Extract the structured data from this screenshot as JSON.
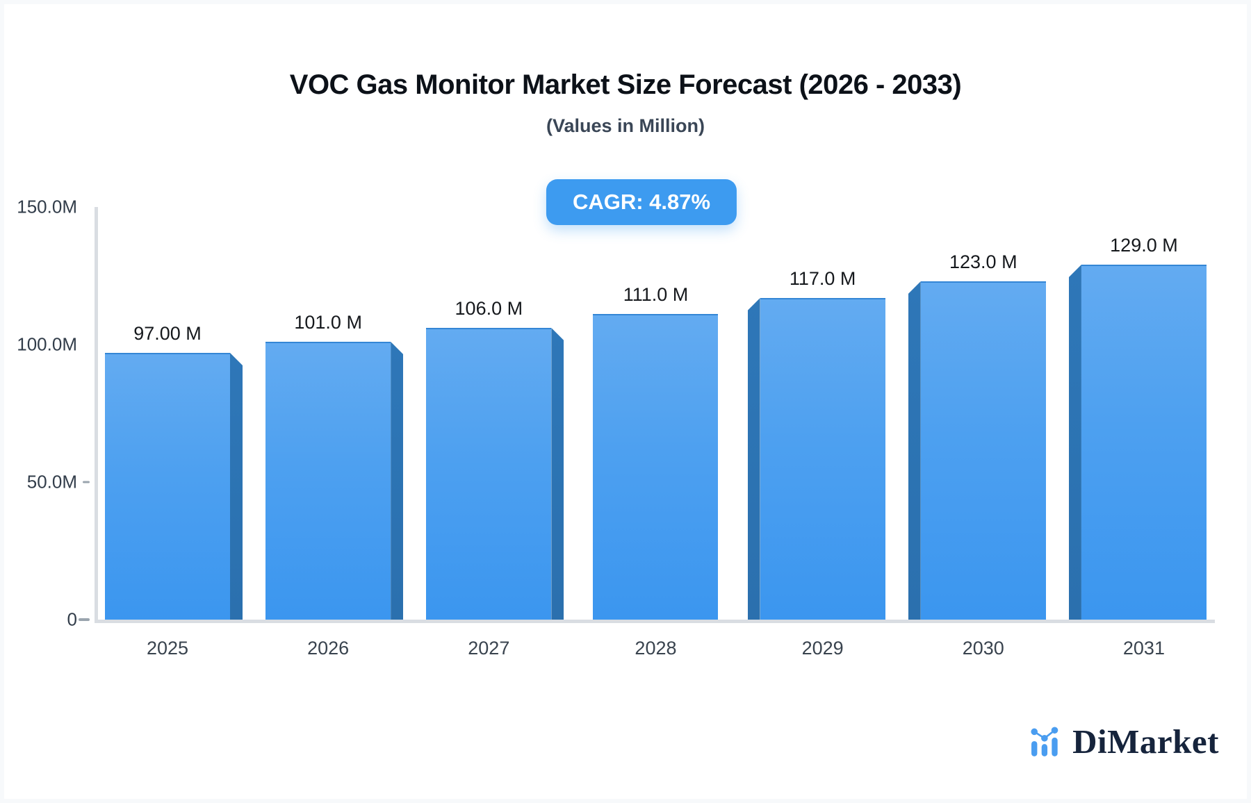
{
  "header": {
    "title": "VOC Gas Monitor Market Size Forecast (2026 - 2033)",
    "subtitle": "(Values in Million)"
  },
  "badge": {
    "label": "CAGR: 4.87%",
    "color": "#3d9bf0",
    "text_color": "#ffffff"
  },
  "chart_data": {
    "type": "bar",
    "title": "VOC Gas Monitor Market Size Forecast (2026 - 2033)",
    "subtitle": "(Values in Million)",
    "categories": [
      "2025",
      "2026",
      "2027",
      "2028",
      "2029",
      "2030",
      "2031"
    ],
    "series": [
      {
        "name": "Market Size (Million)",
        "values": [
          97,
          101,
          106,
          111,
          117,
          123,
          129
        ]
      }
    ],
    "value_labels": [
      "97.00 M",
      "101.0 M",
      "106.0 M",
      "111.0 M",
      "117.0 M",
      "123.0 M",
      "129.0 M"
    ],
    "xlabel": "",
    "ylabel": "",
    "ylim": [
      0,
      150
    ],
    "grid": false,
    "legend": "none",
    "y_ticks": [
      {
        "label": "150.0M",
        "value": 150,
        "dash": false
      },
      {
        "label": "100.0M",
        "value": 100,
        "dash": false
      },
      {
        "label": "50.0M",
        "value": 50,
        "dash": true
      },
      {
        "label": "0",
        "value": 0,
        "dash": true
      }
    ],
    "colors": {
      "bar_face_top": "#63abf1",
      "bar_face_bottom": "#3b96ef",
      "bar_side": "#2e77b8",
      "axis": "#d9dde2",
      "value_label": "#15181c",
      "tick_label": "#323d4a"
    }
  },
  "footer": {
    "logo_text": "DiMarket",
    "logo_text_color": "#16243c",
    "logo_icon_color": "#4a9df0"
  }
}
